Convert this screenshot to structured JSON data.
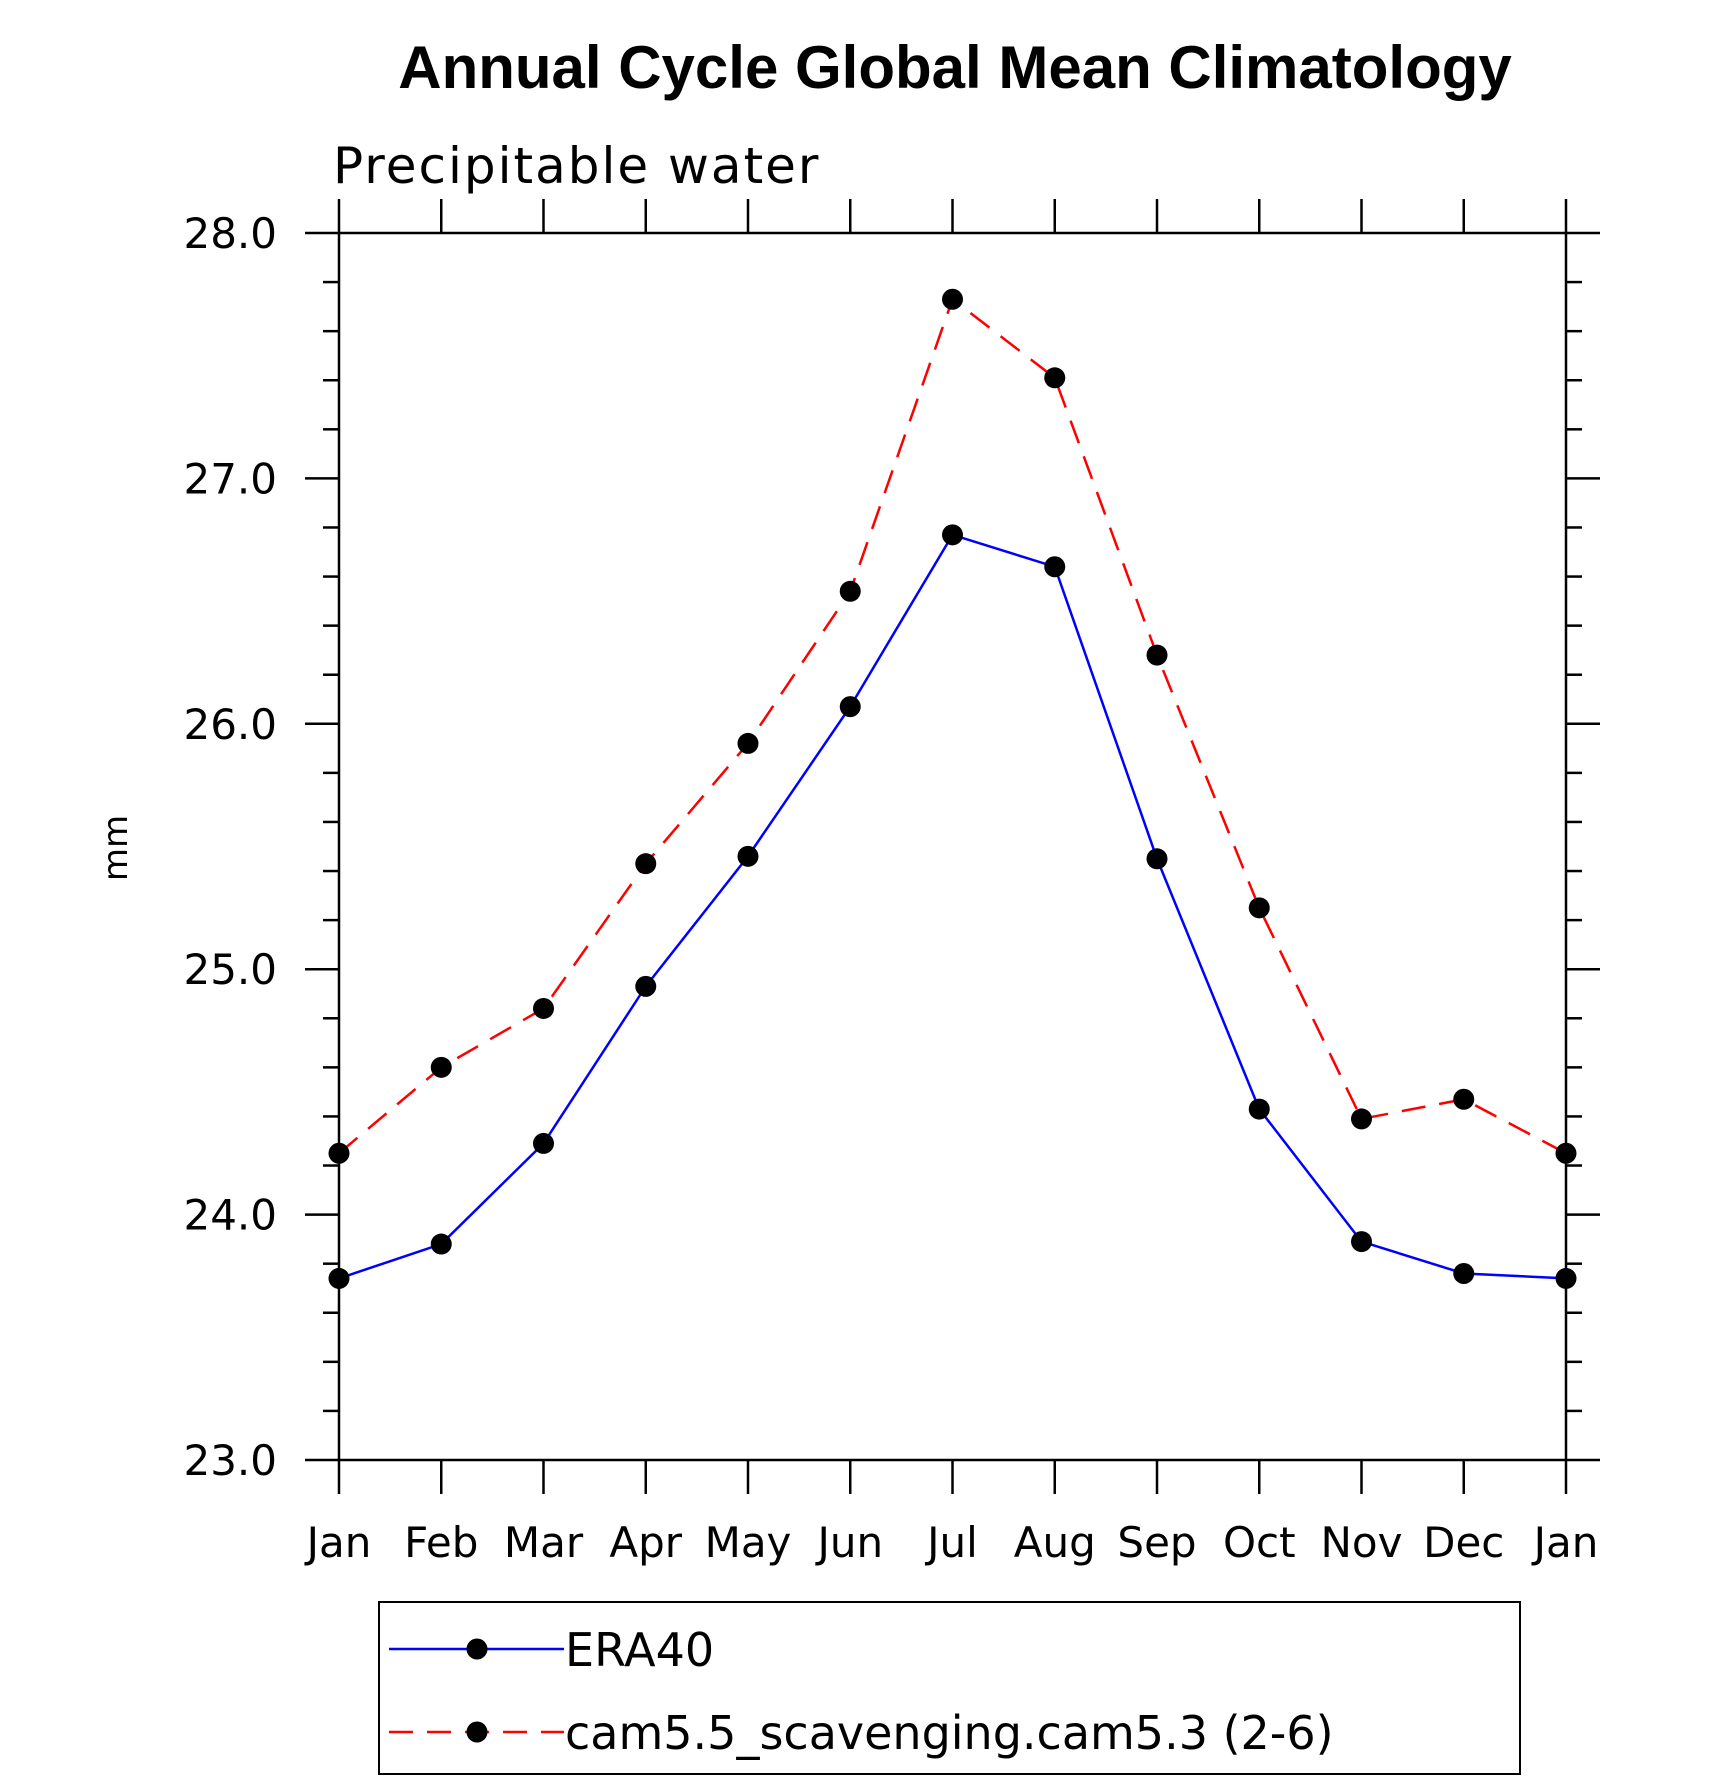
{
  "chart_data": {
    "type": "line",
    "title": "Annual Cycle Global Mean Climatology",
    "subtitle": "Precipitable water",
    "xlabel": "",
    "ylabel": "mm",
    "categories": [
      "Jan",
      "Feb",
      "Mar",
      "Apr",
      "May",
      "Jun",
      "Jul",
      "Aug",
      "Sep",
      "Oct",
      "Nov",
      "Dec",
      "Jan"
    ],
    "ylim": [
      23.0,
      28.0
    ],
    "yticks": [
      "23.0",
      "24.0",
      "25.0",
      "26.0",
      "27.0",
      "28.0"
    ],
    "ytick_values": [
      23.0,
      24.0,
      25.0,
      26.0,
      27.0,
      28.0
    ],
    "y_minor_step": 0.2,
    "grid": false,
    "legend_position": "bottom",
    "series": [
      {
        "name": "ERA40",
        "color": "#0000ff",
        "line_style": "solid",
        "marker": "filled-circle",
        "values": [
          23.74,
          23.88,
          24.29,
          24.93,
          25.46,
          26.07,
          26.77,
          26.64,
          25.45,
          24.43,
          23.89,
          23.76,
          23.74
        ]
      },
      {
        "name": "cam5.5_scavenging.cam5.3 (2-6)",
        "color": "#ff0000",
        "line_style": "dashed",
        "marker": "filled-circle",
        "values": [
          24.25,
          24.6,
          24.84,
          25.43,
          25.92,
          26.54,
          27.73,
          27.41,
          26.28,
          25.25,
          24.39,
          24.47,
          24.25
        ]
      }
    ]
  }
}
